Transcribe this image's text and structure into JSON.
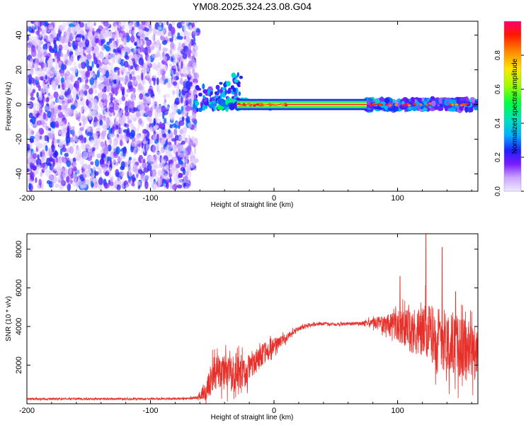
{
  "title": "YM08.2025.324.23.08.G04",
  "colors": {
    "line": "#e8302a",
    "frame": "#000000",
    "background": "#ffffff"
  },
  "chart_data": [
    {
      "type": "heatmap",
      "xlabel": "Height of straight line (km)",
      "ylabel": "Frequency (Hz)",
      "xlim": [
        -200,
        165
      ],
      "ylim": [
        -50,
        48
      ],
      "xticks": [
        -200,
        -100,
        0,
        100
      ],
      "yticks": [
        -40,
        -20,
        0,
        20,
        40
      ],
      "colorbar": {
        "label": "Normalized spectral amplitude",
        "range": [
          0,
          1
        ],
        "ticks": [
          "0.0",
          "0.2",
          "0.4",
          "0.6",
          "0.8"
        ]
      },
      "regions": [
        {
          "desc": "broadband noise",
          "x": [
            -200,
            -63
          ],
          "y": [
            -48,
            48
          ],
          "amplitude": "0.05-0.3"
        },
        {
          "desc": "transition clusters",
          "x": [
            -65,
            -25
          ],
          "y": [
            -10,
            15
          ],
          "amplitude": "0.1-0.4"
        },
        {
          "desc": "strong zero-frequency line",
          "x": [
            -35,
            75
          ],
          "y": [
            -2,
            2
          ],
          "amplitude": "0.4-1.0"
        },
        {
          "desc": "moderate zero-frequency band",
          "x": [
            75,
            165
          ],
          "y": [
            -3,
            3
          ],
          "amplitude": "0.1-0.9"
        }
      ]
    },
    {
      "type": "line",
      "xlabel": "Height of straight line (km)",
      "ylabel": "SNR (10 * v/v)",
      "xlim": [
        -200,
        165
      ],
      "ylim": [
        0,
        8800
      ],
      "xticks": [
        -200,
        -100,
        0,
        100
      ],
      "yticks": [
        2000,
        4000,
        6000,
        8000
      ],
      "series": [
        {
          "name": "SNR",
          "x": [
            -200,
            -150,
            -100,
            -70,
            -62,
            -55,
            -50,
            -45,
            -40,
            -35,
            -30,
            -25,
            -20,
            -15,
            -10,
            -5,
            0,
            5,
            10,
            15,
            20,
            25,
            30,
            40,
            50,
            60,
            70,
            80,
            90,
            100,
            110,
            120,
            130,
            140,
            150,
            160,
            165
          ],
          "mean": [
            250,
            250,
            250,
            270,
            320,
            800,
            1400,
            1700,
            1600,
            1500,
            1700,
            1500,
            2000,
            2200,
            2500,
            2700,
            3000,
            3200,
            3400,
            3700,
            3900,
            4000,
            4100,
            4150,
            4100,
            4150,
            4150,
            4200,
            4100,
            4000,
            3800,
            3700,
            3600,
            3300,
            2900,
            2700,
            2600
          ],
          "spread": [
            60,
            60,
            60,
            60,
            100,
            700,
            1100,
            1100,
            1100,
            1100,
            1100,
            1000,
            900,
            800,
            700,
            600,
            500,
            350,
            250,
            200,
            150,
            120,
            100,
            100,
            100,
            100,
            100,
            300,
            600,
            1000,
            1400,
            1700,
            1900,
            2000,
            2000,
            1900,
            1800
          ],
          "peaks": [
            [
              123,
              8800
            ],
            [
              136,
              8100
            ],
            [
              102,
              6600
            ],
            [
              147,
              5800
            ]
          ]
        }
      ]
    }
  ]
}
